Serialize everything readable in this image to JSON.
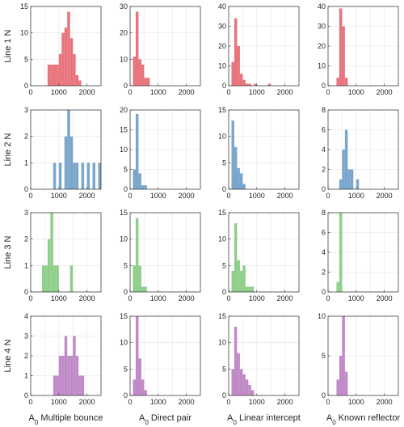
{
  "colors": [
    "#e8747c",
    "#7ba6cc",
    "#8fcf8b",
    "#c08ac8"
  ],
  "row_labels": [
    "Line 1 N",
    "Line 2 N",
    "Line 3 N",
    "Line 4 N"
  ],
  "col_labels": [
    {
      "sym": "A",
      "sub": "0",
      "text": "Multiple bounce"
    },
    {
      "sym": "A",
      "sub": "0",
      "text": "Direct pair"
    },
    {
      "sym": "A",
      "sub": "0",
      "text": "Linear intercept"
    },
    {
      "sym": "A",
      "sub": "0",
      "text": "Known reflector"
    }
  ],
  "x_ticks": [
    "0",
    "1000",
    "2000"
  ],
  "chart_data": [
    {
      "type": "bar",
      "row": 0,
      "col": 0,
      "bin_width": 100,
      "xlim": [
        0,
        2500
      ],
      "ylim": [
        0,
        15
      ],
      "yticks": [
        0,
        5,
        10,
        15
      ],
      "grid": true,
      "bins": [
        [
          600,
          4
        ],
        [
          700,
          4
        ],
        [
          800,
          4
        ],
        [
          900,
          4
        ],
        [
          1000,
          6
        ],
        [
          1100,
          10
        ],
        [
          1200,
          11
        ],
        [
          1300,
          14
        ],
        [
          1400,
          9
        ],
        [
          1500,
          6
        ],
        [
          1600,
          2
        ],
        [
          1700,
          1
        ]
      ]
    },
    {
      "type": "bar",
      "row": 0,
      "col": 1,
      "bin_width": 100,
      "xlim": [
        0,
        2500
      ],
      "ylim": [
        0,
        30
      ],
      "yticks": [
        0,
        10,
        20,
        30
      ],
      "grid": true,
      "bins": [
        [
          100,
          11
        ],
        [
          200,
          28
        ],
        [
          300,
          10
        ],
        [
          400,
          8
        ],
        [
          500,
          3
        ],
        [
          600,
          3
        ]
      ]
    },
    {
      "type": "bar",
      "row": 0,
      "col": 2,
      "bin_width": 100,
      "xlim": [
        0,
        2500
      ],
      "ylim": [
        0,
        40
      ],
      "yticks": [
        0,
        10,
        20,
        30,
        40
      ],
      "grid": true,
      "bins": [
        [
          100,
          12
        ],
        [
          200,
          34
        ],
        [
          300,
          20
        ],
        [
          400,
          6
        ],
        [
          500,
          3
        ],
        [
          600,
          1
        ],
        [
          700,
          1
        ],
        [
          900,
          1
        ],
        [
          1400,
          1
        ]
      ]
    },
    {
      "type": "bar",
      "row": 0,
      "col": 3,
      "bin_width": 100,
      "xlim": [
        0,
        2500
      ],
      "ylim": [
        0,
        40
      ],
      "yticks": [
        0,
        10,
        20,
        30,
        40
      ],
      "grid": true,
      "bins": [
        [
          300,
          4
        ],
        [
          400,
          39
        ],
        [
          500,
          30
        ],
        [
          600,
          4
        ]
      ]
    },
    {
      "type": "bar",
      "row": 1,
      "col": 0,
      "bin_width": 100,
      "xlim": [
        0,
        2500
      ],
      "ylim": [
        0,
        3
      ],
      "yticks": [
        0,
        1,
        2,
        3
      ],
      "grid": true,
      "bins": [
        [
          800,
          1
        ],
        [
          1000,
          1
        ],
        [
          1200,
          2
        ],
        [
          1300,
          3
        ],
        [
          1400,
          2
        ],
        [
          1500,
          1
        ],
        [
          1600,
          1
        ],
        [
          1800,
          1
        ],
        [
          2000,
          1
        ],
        [
          2200,
          1
        ],
        [
          2400,
          1
        ]
      ]
    },
    {
      "type": "bar",
      "row": 1,
      "col": 1,
      "bin_width": 100,
      "xlim": [
        0,
        2500
      ],
      "ylim": [
        0,
        20
      ],
      "yticks": [
        0,
        5,
        10,
        15,
        20
      ],
      "grid": true,
      "bins": [
        [
          100,
          5
        ],
        [
          200,
          19
        ],
        [
          300,
          4
        ],
        [
          400,
          1
        ],
        [
          500,
          1
        ]
      ]
    },
    {
      "type": "bar",
      "row": 1,
      "col": 2,
      "bin_width": 100,
      "xlim": [
        0,
        2500
      ],
      "ylim": [
        0,
        15
      ],
      "yticks": [
        0,
        5,
        10,
        15
      ],
      "grid": true,
      "bins": [
        [
          100,
          13
        ],
        [
          200,
          8
        ],
        [
          300,
          4
        ],
        [
          400,
          3
        ],
        [
          500,
          1
        ]
      ]
    },
    {
      "type": "bar",
      "row": 1,
      "col": 3,
      "bin_width": 100,
      "xlim": [
        0,
        2500
      ],
      "ylim": [
        0,
        8
      ],
      "yticks": [
        0,
        2,
        4,
        6,
        8
      ],
      "grid": true,
      "bins": [
        [
          400,
          1
        ],
        [
          500,
          4
        ],
        [
          600,
          6
        ],
        [
          700,
          2
        ],
        [
          800,
          2
        ],
        [
          1000,
          1
        ]
      ]
    },
    {
      "type": "bar",
      "row": 2,
      "col": 0,
      "bin_width": 100,
      "xlim": [
        0,
        2500
      ],
      "ylim": [
        0,
        3
      ],
      "yticks": [
        0,
        1,
        2,
        3
      ],
      "grid": true,
      "bins": [
        [
          400,
          1
        ],
        [
          500,
          1
        ],
        [
          600,
          2
        ],
        [
          700,
          3
        ],
        [
          800,
          1
        ],
        [
          900,
          1
        ],
        [
          1400,
          1
        ]
      ]
    },
    {
      "type": "bar",
      "row": 2,
      "col": 1,
      "bin_width": 100,
      "xlim": [
        0,
        2500
      ],
      "ylim": [
        0,
        15
      ],
      "yticks": [
        0,
        5,
        10,
        15
      ],
      "grid": true,
      "bins": [
        [
          100,
          5
        ],
        [
          200,
          14
        ],
        [
          300,
          5
        ],
        [
          400,
          1
        ],
        [
          500,
          1
        ]
      ]
    },
    {
      "type": "bar",
      "row": 2,
      "col": 2,
      "bin_width": 100,
      "xlim": [
        0,
        2500
      ],
      "ylim": [
        0,
        15
      ],
      "yticks": [
        0,
        5,
        10,
        15
      ],
      "grid": true,
      "bins": [
        [
          100,
          4
        ],
        [
          200,
          13
        ],
        [
          300,
          6
        ],
        [
          400,
          4
        ],
        [
          500,
          5
        ],
        [
          600,
          1
        ],
        [
          700,
          1
        ],
        [
          800,
          1
        ]
      ]
    },
    {
      "type": "bar",
      "row": 2,
      "col": 3,
      "bin_width": 100,
      "xlim": [
        0,
        2500
      ],
      "ylim": [
        0,
        8
      ],
      "yticks": [
        0,
        2,
        4,
        6,
        8
      ],
      "grid": true,
      "bins": [
        [
          300,
          1
        ],
        [
          400,
          8
        ]
      ]
    },
    {
      "type": "bar",
      "row": 3,
      "col": 0,
      "bin_width": 100,
      "xlim": [
        0,
        2500
      ],
      "ylim": [
        0,
        4
      ],
      "yticks": [
        0,
        1,
        2,
        3,
        4
      ],
      "grid": true,
      "bins": [
        [
          800,
          1
        ],
        [
          900,
          1
        ],
        [
          1000,
          2
        ],
        [
          1100,
          2
        ],
        [
          1200,
          3
        ],
        [
          1300,
          2
        ],
        [
          1400,
          2
        ],
        [
          1500,
          3
        ],
        [
          1600,
          2
        ],
        [
          1700,
          1
        ],
        [
          1800,
          1
        ]
      ]
    },
    {
      "type": "bar",
      "row": 3,
      "col": 1,
      "bin_width": 100,
      "xlim": [
        0,
        2500
      ],
      "ylim": [
        0,
        15
      ],
      "yticks": [
        0,
        5,
        10,
        15
      ],
      "grid": true,
      "bins": [
        [
          100,
          3
        ],
        [
          200,
          15
        ],
        [
          300,
          7
        ],
        [
          400,
          3
        ],
        [
          500,
          1
        ]
      ]
    },
    {
      "type": "bar",
      "row": 3,
      "col": 2,
      "bin_width": 100,
      "xlim": [
        0,
        2500
      ],
      "ylim": [
        0,
        15
      ],
      "yticks": [
        0,
        5,
        10,
        15
      ],
      "grid": true,
      "bins": [
        [
          100,
          5
        ],
        [
          200,
          13
        ],
        [
          300,
          8
        ],
        [
          400,
          5
        ],
        [
          500,
          4
        ],
        [
          600,
          3
        ],
        [
          700,
          2
        ],
        [
          800,
          1
        ]
      ]
    },
    {
      "type": "bar",
      "row": 3,
      "col": 3,
      "bin_width": 100,
      "xlim": [
        0,
        2500
      ],
      "ylim": [
        0,
        10
      ],
      "yticks": [
        0,
        5,
        10
      ],
      "grid": true,
      "bins": [
        [
          300,
          2
        ],
        [
          400,
          5
        ],
        [
          500,
          10
        ],
        [
          600,
          3
        ]
      ]
    }
  ]
}
